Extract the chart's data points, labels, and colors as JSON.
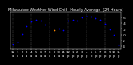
{
  "title": "Milwaukee Weather Wind Chill  Hourly Average  (24 Hours)",
  "hours": [
    0,
    1,
    2,
    3,
    4,
    5,
    6,
    7,
    8,
    9,
    10,
    11,
    12,
    13,
    14,
    15,
    16,
    17,
    18,
    19,
    20,
    21,
    22,
    23
  ],
  "wind_chill": [
    -3.5,
    -2.5,
    0.2,
    2.8,
    4.5,
    5.0,
    4.8,
    3.5,
    2.0,
    1.5,
    2.0,
    1.5,
    4.8,
    5.0,
    4.8,
    6.0,
    6.5,
    6.2,
    5.8,
    5.0,
    3.8,
    1.8,
    -0.2,
    -3.8
  ],
  "dot_color": "#0000ff",
  "orange_dot_hour": 9,
  "bg_color": "#000000",
  "plot_bg_color": "#000000",
  "ylim": [
    -5,
    8
  ],
  "ytick_vals": [
    -4,
    -2,
    0,
    2,
    4,
    6
  ],
  "ytick_labels": [
    "-4",
    "-2",
    " 0",
    " 2",
    " 4",
    " 6"
  ],
  "grid_color": "#888888",
  "title_color": "#ffffff",
  "tick_color": "#ffffff",
  "title_fontsize": 3.5,
  "tick_fontsize": 2.8,
  "marker_size": 1.5,
  "grid_positions": [
    0,
    4,
    8,
    12,
    16,
    20
  ]
}
